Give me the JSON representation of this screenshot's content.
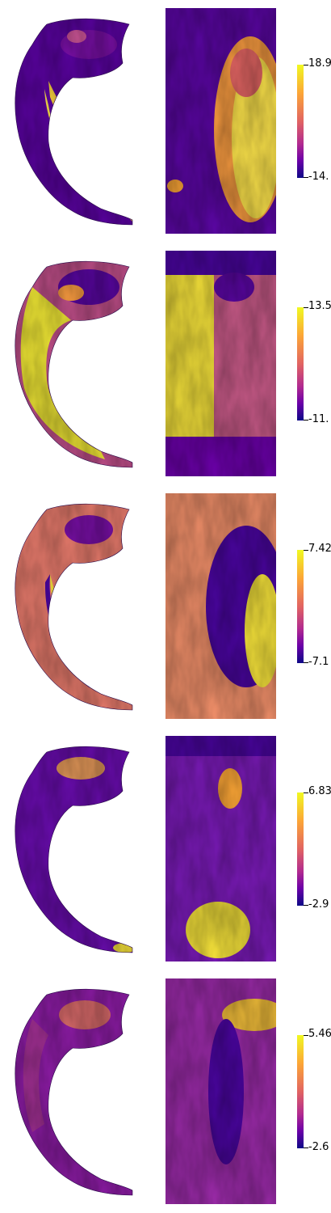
{
  "colormap": [
    "#0d0887",
    "#6a00a8",
    "#b12a90",
    "#e16462",
    "#fca636",
    "#f0f921"
  ],
  "rows": [
    {
      "max_label": "18.9",
      "min_label": "-14."
    },
    {
      "max_label": "13.5",
      "min_label": "-11."
    },
    {
      "max_label": "7.42",
      "min_label": "-7.1"
    },
    {
      "max_label": "6.83",
      "min_label": "-2.9"
    },
    {
      "max_label": "5.46",
      "min_label": "-2.6"
    }
  ]
}
